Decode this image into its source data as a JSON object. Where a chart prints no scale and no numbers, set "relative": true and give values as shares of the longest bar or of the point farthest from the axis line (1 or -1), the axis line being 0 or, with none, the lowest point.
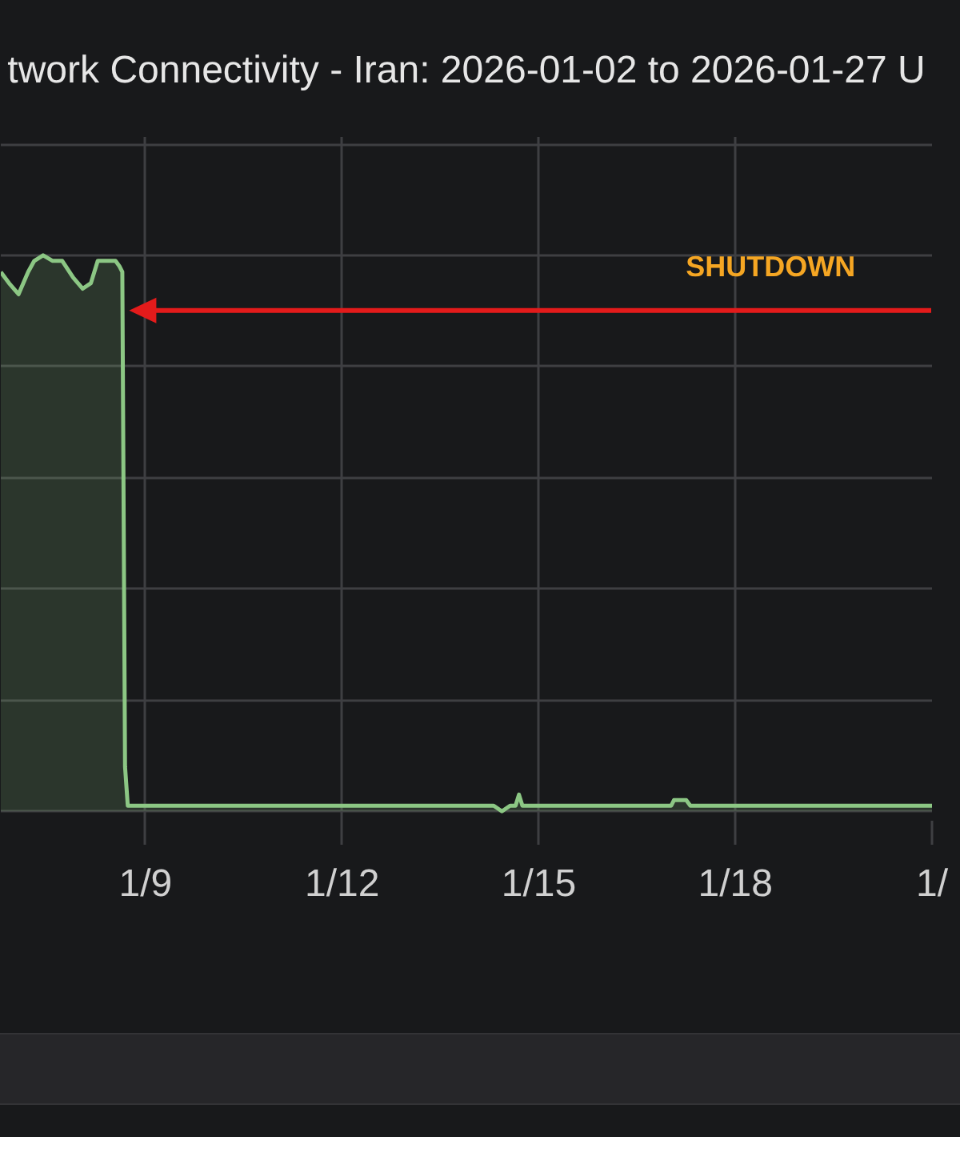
{
  "chart_data": {
    "type": "area",
    "title": "twork Connectivity - Iran: 2026-01-02 to 2026-01-27 U",
    "relative": true,
    "grid": true,
    "xlim": [
      "2026-01-06T19:00",
      "2026-01-21T00:00"
    ],
    "xticks": [
      {
        "value": "2026-01-09",
        "label": "1/9"
      },
      {
        "value": "2026-01-12",
        "label": "1/12"
      },
      {
        "value": "2026-01-15",
        "label": "1/15"
      },
      {
        "value": "2026-01-18",
        "label": "1/18"
      },
      {
        "value": "2026-01-21",
        "label": "1/"
      }
    ],
    "series": [
      {
        "color": "#8cc784",
        "x": [
          "2026-01-06T19:00",
          "2026-01-06T22:00",
          "2026-01-07T01:30",
          "2026-01-07T05:00",
          "2026-01-07T07:15",
          "2026-01-07T10:30",
          "2026-01-07T14:00",
          "2026-01-07T17:30",
          "2026-01-07T21:30",
          "2026-01-08T01:00",
          "2026-01-08T04:00",
          "2026-01-08T06:30",
          "2026-01-08T09:30",
          "2026-01-08T13:00",
          "2026-01-08T14:30",
          "2026-01-08T15:30",
          "2026-01-08T16:30",
          "2026-01-08T17:30",
          "2026-01-08T22:00",
          "2026-01-09T20:30",
          "2026-01-11T01:00",
          "2026-01-12T11:00",
          "2026-01-13T21:00",
          "2026-01-14T07:30",
          "2026-01-14T10:30",
          "2026-01-14T13:30",
          "2026-01-14T15:30",
          "2026-01-14T16:45",
          "2026-01-14T18:00",
          "2026-01-15T19:00",
          "2026-01-16T17:30",
          "2026-01-17T00:30",
          "2026-01-17T01:30",
          "2026-01-17T06:00",
          "2026-01-17T07:30",
          "2026-01-18T15:00",
          "2026-01-19T19:30",
          "2026-01-21T00:00"
        ],
        "values": [
          0.97,
          0.95,
          0.93,
          0.97,
          0.99,
          1.0,
          0.99,
          0.99,
          0.96,
          0.94,
          0.95,
          0.99,
          0.99,
          0.99,
          0.98,
          0.97,
          0.08,
          0.01,
          0.01,
          0.01,
          0.01,
          0.01,
          0.01,
          0.01,
          0.0,
          0.01,
          0.01,
          0.03,
          0.01,
          0.01,
          0.01,
          0.01,
          0.02,
          0.02,
          0.01,
          0.01,
          0.01,
          0.01
        ]
      }
    ],
    "annotations": [
      "SHUTDOWN"
    ]
  }
}
